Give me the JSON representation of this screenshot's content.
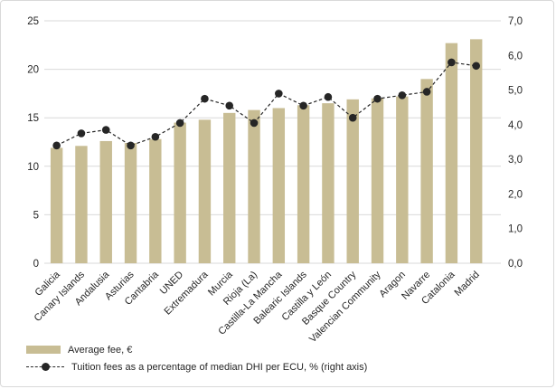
{
  "figure": {
    "background": "#FFFFFF",
    "border_color": "#D9D9D9",
    "text_color": "#262626",
    "gridline_color": "#D9D9D9"
  },
  "chart_data": {
    "type": "combo",
    "title": "",
    "categories": [
      "Galicia",
      "Canary Islands",
      "Andalusia",
      "Asturias",
      "Cantabria",
      "UNED",
      "Extremadura",
      "Murcia",
      "Rioja (La)",
      "Castilla-La Mancha",
      "Balearic Islands",
      "Castilla y León",
      "Basque Country",
      "Valencian Community",
      "Aragon",
      "Navarre",
      "Catalonia",
      "Madrid"
    ],
    "series": [
      {
        "name": "Average fee, €",
        "type": "bar",
        "axis": "left",
        "color": "#C8BD94",
        "values": [
          11.9,
          12.1,
          12.6,
          12.4,
          12.8,
          14.5,
          14.8,
          15.5,
          15.8,
          16.0,
          16.3,
          16.5,
          16.9,
          17.0,
          17.2,
          19.0,
          22.7,
          23.1
        ]
      },
      {
        "name": "Tuition fees as a percentage of median DHI per ECU, % (right axis)",
        "type": "line",
        "axis": "right",
        "color": "#262626",
        "line_style": "dashed",
        "marker": "circle",
        "values": [
          3.4,
          3.75,
          3.85,
          3.4,
          3.65,
          4.05,
          4.75,
          4.55,
          4.05,
          4.9,
          4.55,
          4.8,
          4.2,
          4.75,
          4.85,
          4.95,
          5.8,
          5.7
        ]
      }
    ],
    "left_axis": {
      "min": 0,
      "max": 25,
      "tick_interval": 5,
      "tick_labels": [
        "25",
        "20",
        "15",
        "10",
        "5",
        "0"
      ]
    },
    "right_axis": {
      "min": 0,
      "max": 7,
      "tick_interval": 1,
      "tick_labels": [
        "7,0",
        "6,0",
        "5,0",
        "4,0",
        "3,0",
        "2,0",
        "1,0",
        "0,0"
      ]
    },
    "grid": "horizontal",
    "legend_position": "bottom-left",
    "category_label_rotation": 45
  }
}
